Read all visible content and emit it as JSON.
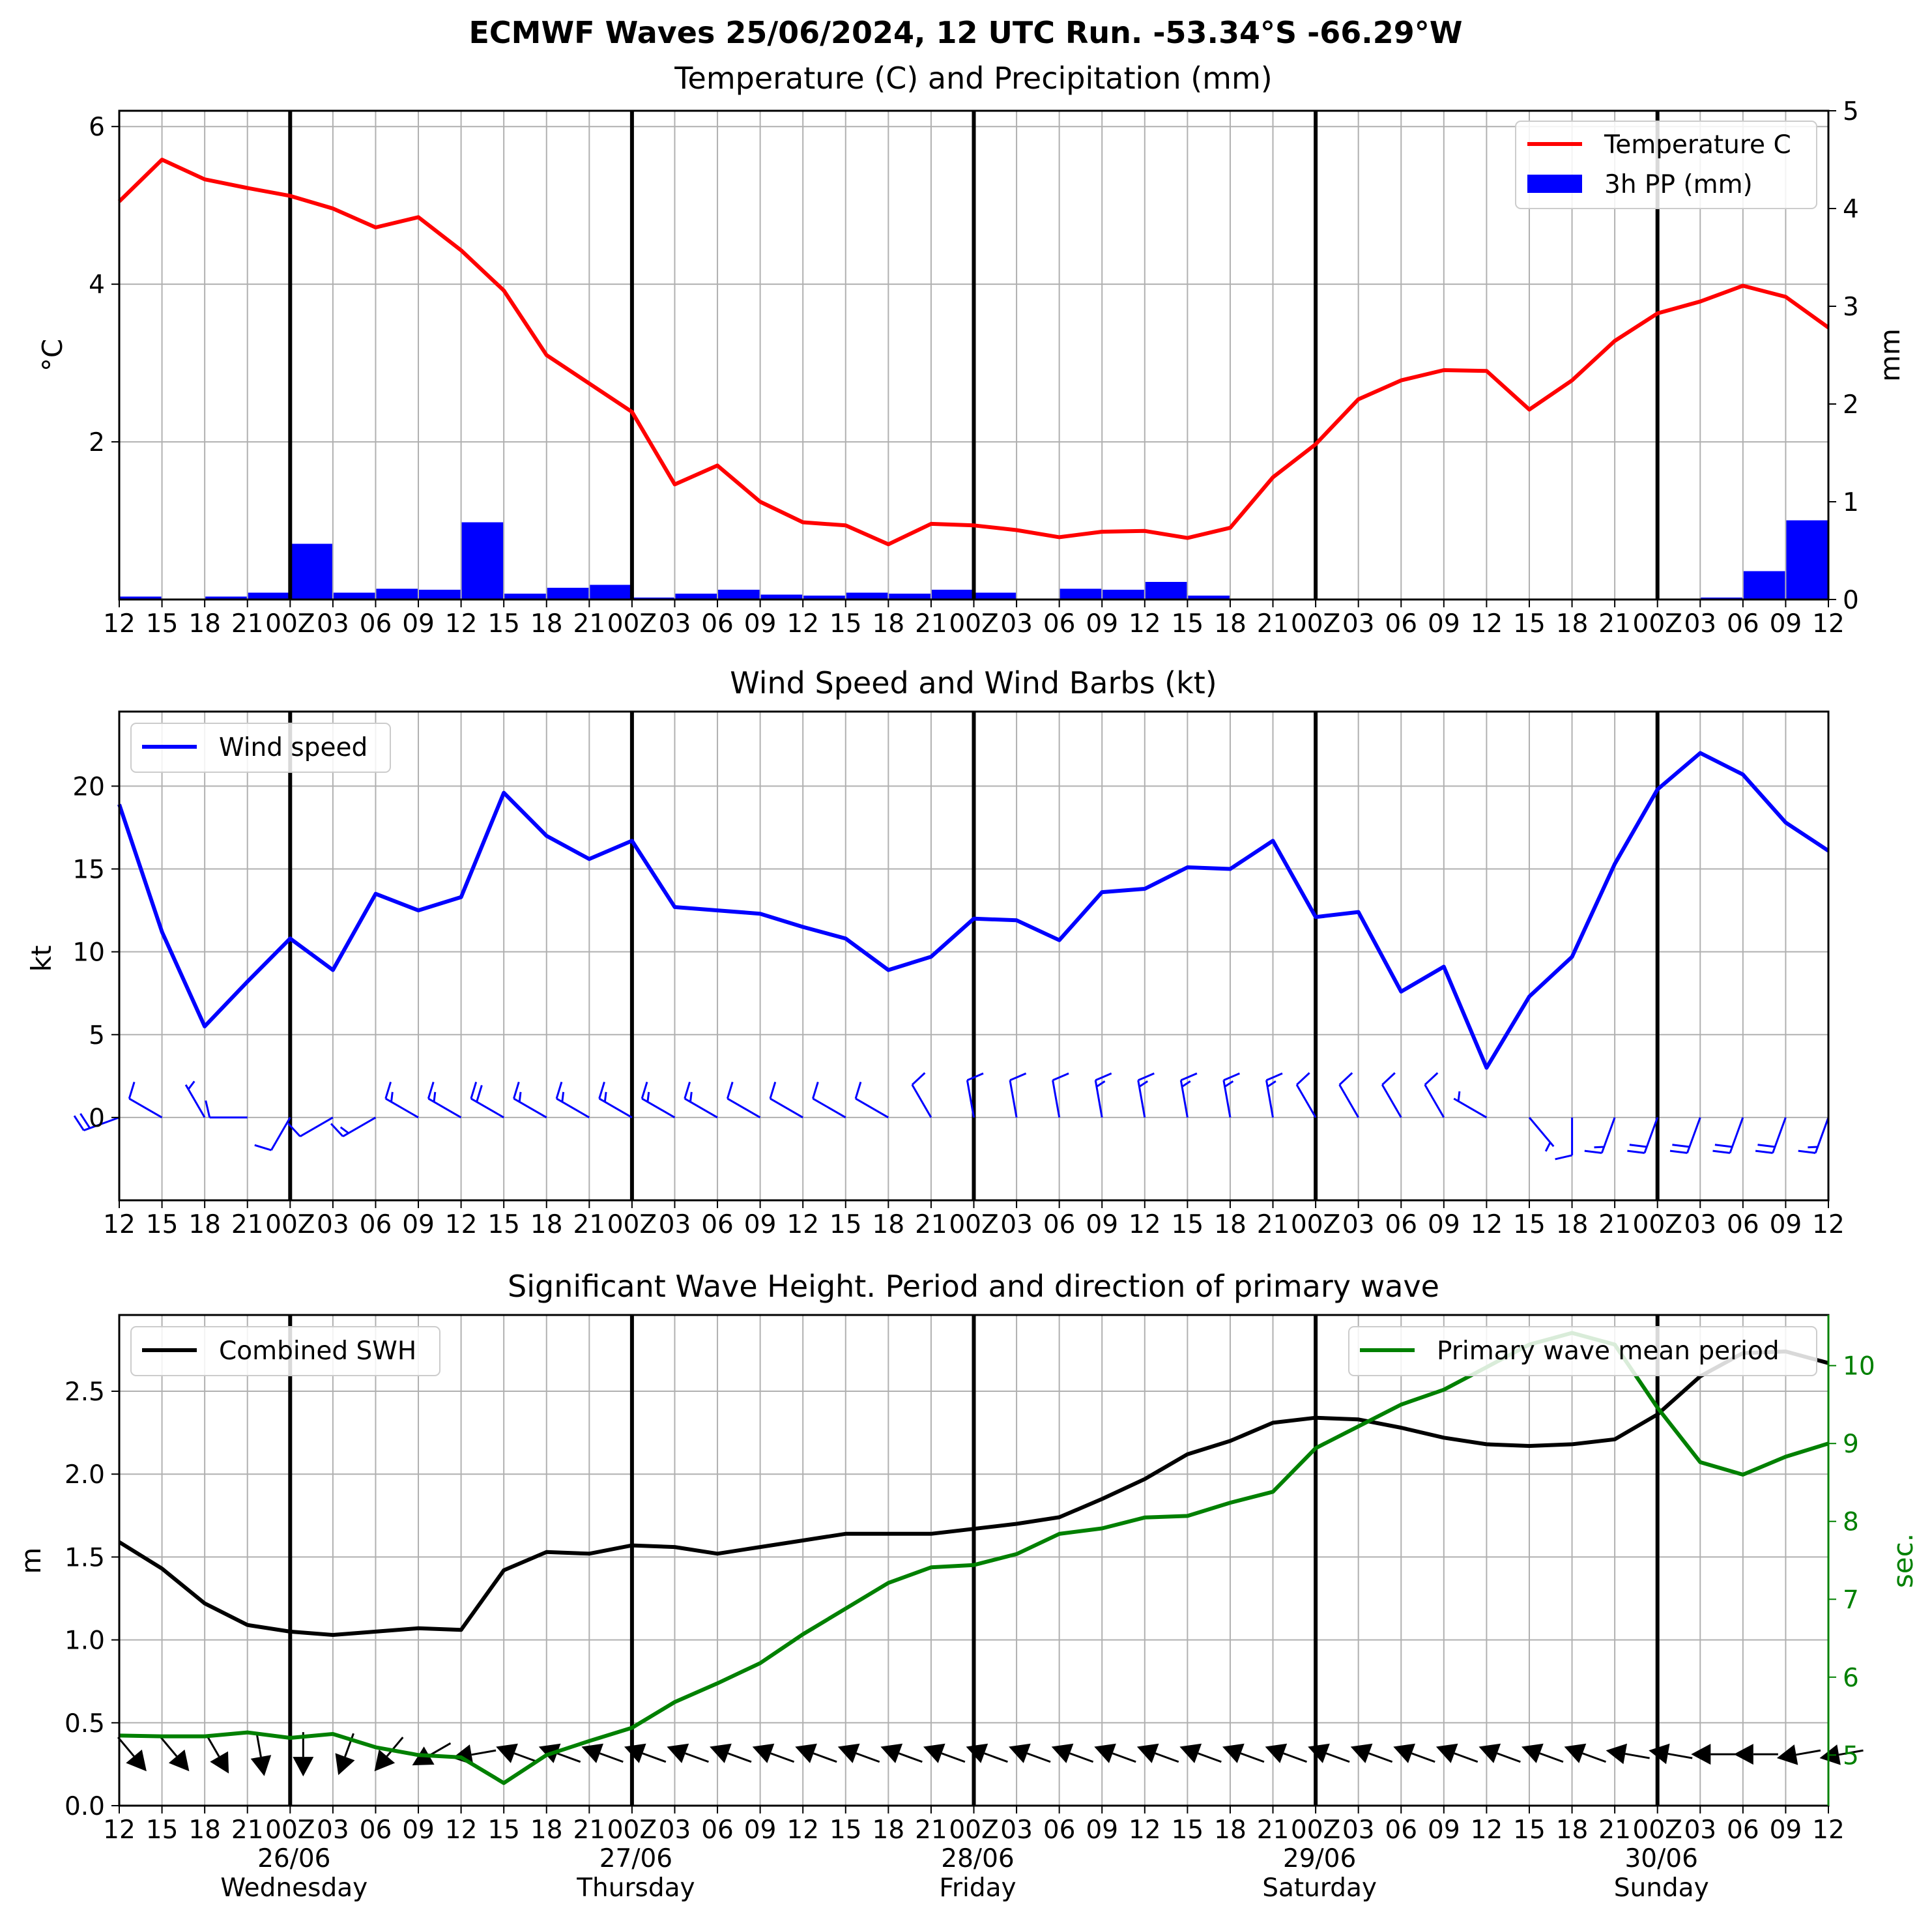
{
  "suptitle": "ECMWF Waves 25/06/2024, 12 UTC Run. -53.34°S -66.29°W",
  "colors": {
    "temperature": "#ff0000",
    "precipitation": "#0000ff",
    "wind": "#0000ff",
    "swh": "#000000",
    "period": "#008000",
    "grid": "#b0b0b0"
  },
  "time_axis": {
    "tick_labels": [
      "12",
      "15",
      "18",
      "21",
      "00Z",
      "03",
      "06",
      "09",
      "12",
      "15",
      "18",
      "21",
      "00Z",
      "03",
      "06",
      "09",
      "12",
      "15",
      "18",
      "21",
      "00Z",
      "03",
      "06",
      "09",
      "12",
      "15",
      "18",
      "21",
      "00Z",
      "03",
      "06",
      "09",
      "12",
      "15",
      "18",
      "21",
      "00Z",
      "03",
      "06",
      "09",
      "12"
    ],
    "day_labels": [
      {
        "date": "26/06",
        "weekday": "Wednesday"
      },
      {
        "date": "27/06",
        "weekday": "Thursday"
      },
      {
        "date": "28/06",
        "weekday": "Friday"
      },
      {
        "date": "29/06",
        "weekday": "Saturday"
      },
      {
        "date": "30/06",
        "weekday": "Sunday"
      }
    ],
    "day_boundaries": [
      4,
      12,
      20,
      28,
      36
    ]
  },
  "chart_data": [
    {
      "type": "line",
      "title": "Temperature (C) and Precipitation (mm)",
      "ylabel": "°C",
      "ylabel_right": "mm",
      "ylim": [
        0,
        6.2
      ],
      "yticks": [
        2,
        4,
        6
      ],
      "ylim_right": [
        0,
        5
      ],
      "yticks_right": [
        0,
        1,
        2,
        3,
        4,
        5
      ],
      "legend_position": "top-right",
      "grid": true,
      "series": [
        {
          "name": "Temperature C",
          "type": "line",
          "axis": "left",
          "values": [
            5.05,
            5.58,
            5.33,
            5.22,
            5.12,
            4.96,
            4.72,
            4.85,
            4.43,
            3.92,
            3.1,
            2.74,
            2.38,
            1.46,
            1.7,
            1.24,
            0.98,
            0.94,
            0.7,
            0.96,
            0.94,
            0.88,
            0.79,
            0.86,
            0.87,
            0.78,
            0.91,
            1.55,
            1.97,
            2.54,
            2.78,
            2.91,
            2.9,
            2.41,
            2.78,
            3.28,
            3.63,
            3.78,
            3.98,
            3.84,
            3.45
          ]
        },
        {
          "name": "3h PP (mm)",
          "type": "bar",
          "axis": "right",
          "values": [
            0.03,
            0.0,
            0.03,
            0.07,
            0.57,
            0.07,
            0.11,
            0.1,
            0.79,
            0.06,
            0.12,
            0.15,
            0.02,
            0.06,
            0.1,
            0.05,
            0.04,
            0.07,
            0.06,
            0.1,
            0.07,
            0.0,
            0.11,
            0.1,
            0.18,
            0.04,
            0.01,
            0.0,
            0.0,
            0.0,
            0.0,
            0.0,
            0.01,
            0.01,
            0.0,
            0.0,
            0.0,
            0.02,
            0.29,
            0.81
          ]
        }
      ]
    },
    {
      "type": "line",
      "title": "Wind Speed and Wind Barbs (kt)",
      "ylabel": "kt",
      "ylim": [
        -5,
        24.5
      ],
      "yticks": [
        0,
        5,
        10,
        15,
        20
      ],
      "legend_position": "top-left",
      "grid": true,
      "series": [
        {
          "name": "Wind speed",
          "values": [
            18.9,
            11.2,
            5.5,
            8.2,
            10.8,
            8.9,
            13.5,
            12.5,
            13.3,
            19.6,
            17.0,
            15.6,
            16.7,
            12.7,
            12.5,
            12.3,
            11.5,
            10.8,
            8.9,
            9.7,
            12.0,
            11.9,
            10.7,
            13.6,
            13.8,
            15.1,
            15.0,
            16.7,
            12.1,
            12.4,
            7.6,
            9.1,
            3.0,
            7.3,
            9.7,
            15.3,
            19.8,
            22.0,
            20.7,
            17.8,
            16.1
          ]
        }
      ],
      "wind_barbs": {
        "speed_kt": [
          18.9,
          11.2,
          5.5,
          8.2,
          10.8,
          8.9,
          13.5,
          12.5,
          13.3,
          19.6,
          17.0,
          15.6,
          16.7,
          12.7,
          12.5,
          12.3,
          11.5,
          10.8,
          8.9,
          9.7,
          12.0,
          11.9,
          10.7,
          13.6,
          13.8,
          15.1,
          15.0,
          16.7,
          12.1,
          12.4,
          7.6,
          9.1,
          3.0,
          7.3,
          9.7,
          15.3,
          19.8,
          22.0,
          20.7,
          17.8,
          16.1
        ],
        "direction_deg": [
          250,
          300,
          330,
          270,
          210,
          240,
          240,
          300,
          300,
          300,
          300,
          300,
          300,
          300,
          300,
          300,
          300,
          300,
          300,
          330,
          350,
          350,
          350,
          350,
          350,
          350,
          350,
          350,
          330,
          330,
          330,
          330,
          300,
          140,
          180,
          200,
          200,
          200,
          200,
          200,
          200
        ]
      }
    },
    {
      "type": "line",
      "title": "Significant Wave Height. Period and direction of primary wave",
      "ylabel": "m",
      "ylabel_right": "sec.",
      "ylim": [
        0,
        2.96
      ],
      "yticks": [
        0.0,
        0.5,
        1.0,
        1.5,
        2.0,
        2.5
      ],
      "ylim_right": [
        4.35,
        10.65
      ],
      "yticks_right": [
        5,
        6,
        7,
        8,
        9,
        10
      ],
      "grid": true,
      "series": [
        {
          "name": "Combined SWH",
          "axis": "left",
          "legend_position": "top-left",
          "values": [
            1.59,
            1.43,
            1.22,
            1.09,
            1.05,
            1.03,
            1.05,
            1.07,
            1.06,
            1.42,
            1.53,
            1.52,
            1.57,
            1.56,
            1.52,
            1.56,
            1.6,
            1.64,
            1.64,
            1.64,
            1.67,
            1.7,
            1.74,
            1.85,
            1.97,
            2.12,
            2.2,
            2.31,
            2.34,
            2.33,
            2.28,
            2.22,
            2.18,
            2.17,
            2.18,
            2.21,
            2.36,
            2.59,
            2.73,
            2.74,
            2.67
          ]
        },
        {
          "name": "Primary wave mean period",
          "axis": "right",
          "legend_position": "top-right",
          "values": [
            5.25,
            5.24,
            5.24,
            5.29,
            5.22,
            5.27,
            5.1,
            5.0,
            4.97,
            4.64,
            5.0,
            5.18,
            5.35,
            5.68,
            5.92,
            6.18,
            6.55,
            6.88,
            7.21,
            7.41,
            7.44,
            7.58,
            7.84,
            7.91,
            8.05,
            8.07,
            8.24,
            8.38,
            8.94,
            9.22,
            9.5,
            9.69,
            9.98,
            10.27,
            10.42,
            10.27,
            9.46,
            8.76,
            8.6,
            8.83,
            9.0
          ]
        }
      ],
      "wave_direction_arrows_deg": [
        320,
        320,
        330,
        350,
        0,
        20,
        40,
        60,
        80,
        110,
        110,
        110,
        110,
        110,
        110,
        110,
        110,
        110,
        110,
        110,
        110,
        110,
        110,
        110,
        110,
        110,
        110,
        110,
        110,
        110,
        110,
        110,
        110,
        110,
        110,
        100,
        100,
        90,
        90,
        80,
        80
      ]
    }
  ]
}
